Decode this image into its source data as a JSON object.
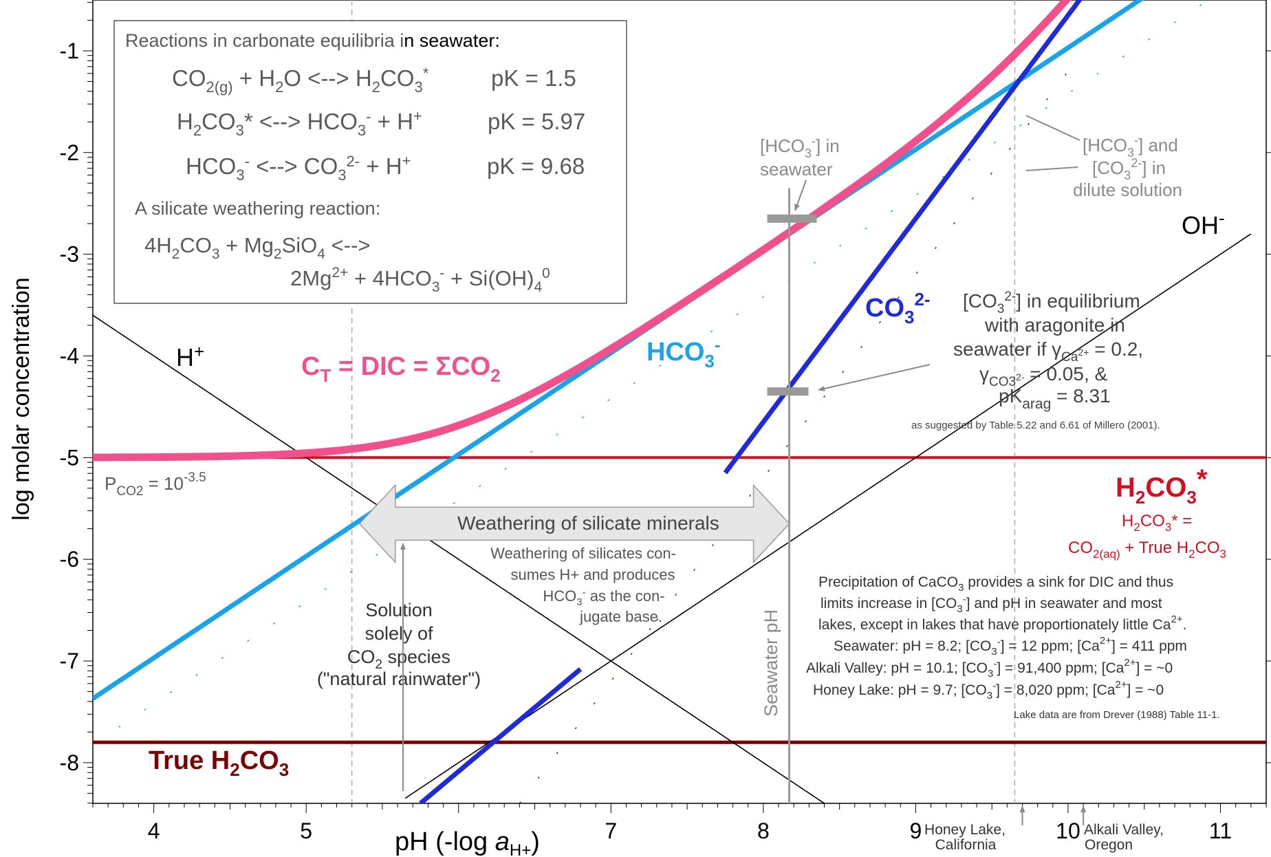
{
  "chart_data": {
    "type": "line",
    "xlabel_main": "pH (-log ",
    "xlabel_a": "a",
    "xlabel_sub": "H+",
    "xlabel_close": ")",
    "ylabel": "log molar concentration",
    "xlim": [
      3.6,
      11.3
    ],
    "ylim": [
      -8.4,
      -0.5
    ],
    "x_ticks": [
      4,
      5,
      6,
      7,
      8,
      9,
      10,
      11
    ],
    "y_ticks": [
      -1,
      -2,
      -3,
      -4,
      -5,
      -6,
      -7,
      -8
    ],
    "x_tick_labels": [
      "4",
      "5",
      "",
      "7",
      "8",
      "9",
      "10",
      "11"
    ],
    "y_tick_labels": [
      "-1",
      "-2",
      "-3",
      "-4",
      "-5",
      "-6",
      "-7",
      "-8"
    ],
    "constants": {
      "log_pco2": -3.5,
      "pK_h": 1.5,
      "pK1": 5.97,
      "pK2": 9.68,
      "pKw": 14
    },
    "series": [
      {
        "key": "dic",
        "label_main": "C",
        "label_sub": "T",
        "label_rest": " = DIC = ΣCO",
        "label_sub2": "2",
        "color": "#f0508c",
        "values_at": [
          {
            "x": 4,
            "y": -5.0
          },
          {
            "x": 6,
            "y": -4.5
          },
          {
            "x": 8,
            "y": -2.7
          },
          {
            "x": 9.7,
            "y": -0.7
          }
        ]
      },
      {
        "key": "hco3",
        "label_main": "HCO",
        "label_sub": "3",
        "label_sup": "-",
        "color": "#1aa3e8",
        "values_at": [
          {
            "x": 4,
            "y": -7.0
          },
          {
            "x": 6,
            "y": -5.0
          },
          {
            "x": 8,
            "y": -3.0
          },
          {
            "x": 10,
            "y": -1.3
          }
        ]
      },
      {
        "key": "co3",
        "label_main": "CO",
        "label_sub": "3",
        "label_sup": "2-",
        "color": "#1f2bd6",
        "values_at": [
          {
            "x": 6,
            "y": -8.7
          },
          {
            "x": 8,
            "y": -4.7
          },
          {
            "x": 9,
            "y": -2.8
          },
          {
            "x": 10,
            "y": -1.3
          }
        ]
      },
      {
        "key": "h2co3s",
        "label_main": "H",
        "label_sub": "2",
        "label_rest": "CO",
        "label_sub2": "3",
        "label_sup": "*",
        "color": "#d40f22",
        "values_at": [
          {
            "x": 4,
            "y": -5.0
          },
          {
            "x": 11,
            "y": -5.0
          }
        ]
      },
      {
        "key": "trueh2co3",
        "label_main": "True H",
        "label_sub": "2",
        "label_rest": "CO",
        "label_sub2": "3",
        "color": "#7a0000",
        "values_at": [
          {
            "x": 4,
            "y": -7.8
          },
          {
            "x": 11,
            "y": -7.8
          }
        ]
      },
      {
        "key": "h",
        "label_main": "H",
        "label_sup": "+",
        "color": "#000000",
        "values_at": [
          {
            "x": 4,
            "y": -4.0
          },
          {
            "x": 8,
            "y": -8.0
          }
        ]
      },
      {
        "key": "oh",
        "label_main": "OH",
        "label_sup": "-",
        "color": "#000000",
        "values_at": [
          {
            "x": 6,
            "y": -8.0
          },
          {
            "x": 11,
            "y": -3.0
          }
        ]
      }
    ],
    "reference_lines": {
      "seawater_ph": 8.17,
      "rainwater_ph": 5.3,
      "dilute_ph": 9.65,
      "seawater_hco3": -2.65,
      "seawater_co3": -4.35,
      "seawater_label": "Seawater pH"
    },
    "reactions_box": {
      "title_a": "Reactions in carbonate equilibria i",
      "title_b": "n seawater:",
      "r1": {
        "lhs_a": "CO",
        "lhs_sub": "2(g)",
        "lhs_b": " + H",
        "lhs_sub2": "2",
        "lhs_c": "O <--> H",
        "lhs_sub3": "2",
        "lhs_d": "CO",
        "lhs_sub4": "3",
        "lhs_e": "*",
        "pk": "pK = 1.5"
      },
      "r2": {
        "a": "H",
        "sub1": "2",
        "b": "CO",
        "sub2": "3",
        "c": "* <--> HCO",
        "sub3": "3",
        "sup3": "-",
        "d": " + H",
        "sup4": "+",
        "pk": "pK = 5.97"
      },
      "r3": {
        "a": "HCO",
        "sub1": "3",
        "sup1": "-",
        "b": " <--> CO",
        "sub2": "3",
        "sup2": "2-",
        "c": " + H",
        "sup3": "+",
        "pk": "pK = 9.68"
      },
      "silicate_title": "A silicate weathering reaction:",
      "s1": {
        "a": "4H",
        "sub1": "2",
        "b": "CO",
        "sub2": "3",
        "c": " + Mg",
        "sub3": "2",
        "d": "SiO",
        "sub4": "4",
        "e": " <-->"
      },
      "s2": {
        "a": "2Mg",
        "sup1": "2+",
        "b": " + 4HCO",
        "sub2": "3",
        "sup2": "-",
        "c": " + Si(OH)",
        "sub3": "4",
        "sup3": "0"
      }
    },
    "annotations": {
      "pco2": {
        "a": "P",
        "sub": "CO2",
        "b": " = 10",
        "sup": "-3.5"
      },
      "h2co3_def_line1": {
        "a": "H",
        "sub1": "2",
        "b": "CO",
        "sub2": "3",
        "c": "* ="
      },
      "h2co3_def_line2": {
        "a": "CO",
        "sub1": "2(aq)",
        "b": " + True H",
        "sub2": "2",
        "c": "CO",
        "sub3": "3"
      },
      "hco3_seawater_l1": {
        "a": "[HCO",
        "sub": "3",
        "sup": "-",
        "b": "]  in"
      },
      "hco3_seawater_l2": "seawater",
      "dilute_l1": {
        "a": "[HCO",
        "sub": "3",
        "sup": "-",
        "b": "] and"
      },
      "dilute_l2": {
        "a": "[CO",
        "sub": "3",
        "sup": "2-",
        "b": "]  in"
      },
      "dilute_l3": "dilute solution",
      "arag_l1": {
        "a": "[CO",
        "sub": "3",
        "sup": "2-",
        "b": "] in equilibrium"
      },
      "arag_l2": "with aragonite in",
      "arag_l3": {
        "a": "seawater if γ",
        "sub": "Ca",
        "subsup": "2+",
        "b": " = 0.2,"
      },
      "arag_l4": {
        "a": "γ",
        "sub": "CO3",
        "subsup": "2-",
        "b": " = 0.05, &"
      },
      "arag_l5": {
        "a": "pK",
        "sub": "arag",
        "b": " = 8.31"
      },
      "arag_source": "as suggested by Table 5.22 and 6.61 of Millero (2001).",
      "weathering_arrow": "Weathering of silicate minerals",
      "weathering_l1": "Weathering of silicates con-",
      "weathering_l2": "sumes H+ and produces",
      "weathering_l3": {
        "a": "HCO",
        "sub": "3",
        "sup": "-",
        "b": " as the con-"
      },
      "weathering_l4": "jugate base.",
      "rain_l1": "Solution",
      "rain_l2": "solely of",
      "rain_l3": {
        "a": "CO",
        "sub": "2",
        "b": " species"
      },
      "rain_l4": "(\"natural rainwater\")",
      "precip_l1": {
        "a": "Precipitation of CaCO",
        "sub": "3",
        "b": " provides a sink for DIC and thus"
      },
      "precip_l2": {
        "a": "limits increase in [CO",
        "sub": "3",
        "sup": "-",
        "b": "] and pH in seawater and most"
      },
      "precip_l3": {
        "a": "lakes, except in lakes that have proportionately little Ca",
        "sup": "2+",
        "b": "."
      },
      "lake_seawater": {
        "a": "Seawater: pH = 8.2;  [CO",
        "sub": "3",
        "sup": "-",
        "b": "] = 12 ppm;  [Ca",
        "sup2": "2+",
        "c": "] = 411 ppm"
      },
      "lake_alkali": {
        "a": "Alkali Valley: pH = 10.1;  [CO",
        "sub": "3",
        "sup": "-",
        "b": "] = 91,400 ppm;  [Ca",
        "sup2": "2+",
        "c": "] = ~0"
      },
      "lake_honey": {
        "a": "Honey Lake: pH = 9.7;  [CO",
        "sub": "3",
        "sup": "-",
        "b": "] = 8,020 ppm;  [Ca",
        "sup2": "2+",
        "c": "] = ~0"
      },
      "lake_source": "Lake data are from Drever (1988) Table 11-1.",
      "honey_lake_l1": "Honey Lake,",
      "honey_lake_l2": "California",
      "alkali_valley_l1": "Alkali Valley,",
      "alkali_valley_l2": "Oregon",
      "honey_lake_ph": 9.7,
      "alkali_valley_ph": 10.1
    }
  }
}
